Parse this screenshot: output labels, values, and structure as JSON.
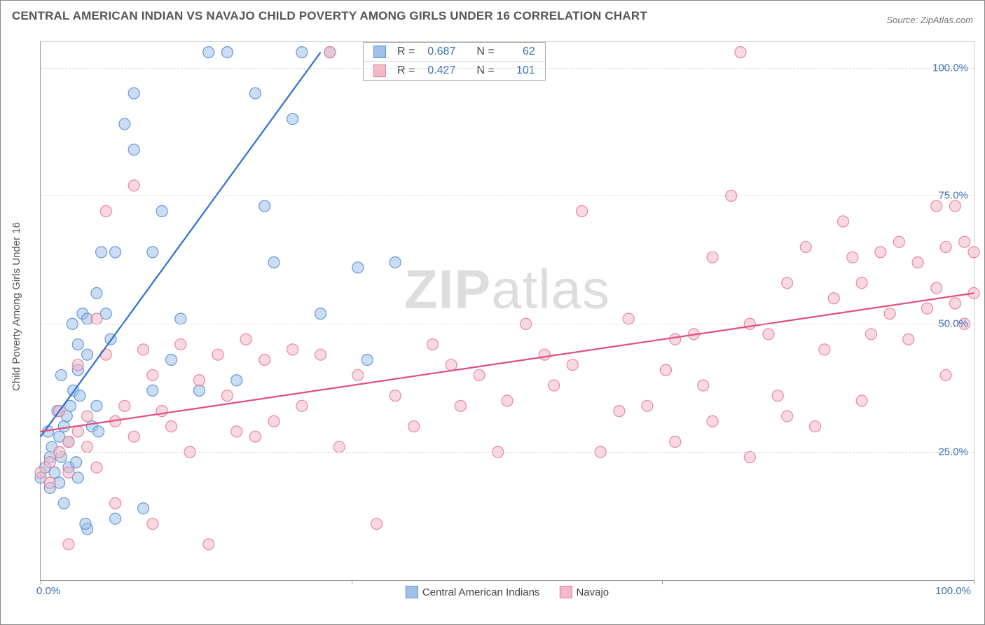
{
  "title": "CENTRAL AMERICAN INDIAN VS NAVAJO CHILD POVERTY AMONG GIRLS UNDER 16 CORRELATION CHART",
  "source": "Source: ZipAtlas.com",
  "ylabel": "Child Poverty Among Girls Under 16",
  "watermark_bold": "ZIP",
  "watermark_rest": "atlas",
  "chart": {
    "type": "scatter",
    "background_color": "#ffffff",
    "grid_color": "#d8d8d8",
    "axis_color": "#999999",
    "tick_label_color": "#3b6fb6",
    "xlim": [
      0,
      100
    ],
    "ylim": [
      0,
      105
    ],
    "yticks": [
      25,
      50,
      75,
      100
    ],
    "ytick_labels": [
      "25.0%",
      "50.0%",
      "75.0%",
      "100.0%"
    ],
    "xtick_positions": [
      0,
      33.3,
      66.6,
      100
    ],
    "xaxis_labels": {
      "left": "0.0%",
      "right": "100.0%"
    },
    "marker_radius": 8,
    "marker_opacity": 0.55,
    "marker_stroke_opacity": 0.9,
    "line_width": 2.2
  },
  "series": [
    {
      "name": "Central American Indians",
      "color_fill": "#9fc1e8",
      "color_stroke": "#5a8fd6",
      "line_color": "#2e6fd1",
      "stats": {
        "R": "0.687",
        "N": "62"
      },
      "trend": {
        "x1": 0,
        "y1": 28,
        "x2": 30,
        "y2": 103
      },
      "points": [
        [
          0,
          20
        ],
        [
          0.5,
          22
        ],
        [
          1,
          24
        ],
        [
          1,
          18
        ],
        [
          1.2,
          26
        ],
        [
          1.5,
          21
        ],
        [
          2,
          28
        ],
        [
          2,
          19
        ],
        [
          2.2,
          24
        ],
        [
          2.5,
          30
        ],
        [
          2.5,
          15
        ],
        [
          3,
          27
        ],
        [
          3,
          22
        ],
        [
          3.2,
          34
        ],
        [
          3.5,
          37
        ],
        [
          4,
          41
        ],
        [
          4,
          20
        ],
        [
          4,
          46
        ],
        [
          4.5,
          52
        ],
        [
          5,
          51
        ],
        [
          5,
          44
        ],
        [
          5,
          10
        ],
        [
          5.5,
          30
        ],
        [
          6,
          56
        ],
        [
          6,
          34
        ],
        [
          6.5,
          64
        ],
        [
          7,
          52
        ],
        [
          7.5,
          47
        ],
        [
          8,
          12
        ],
        [
          8,
          64
        ],
        [
          9,
          89
        ],
        [
          10,
          84
        ],
        [
          10,
          95
        ],
        [
          11,
          14
        ],
        [
          12,
          64
        ],
        [
          12,
          37
        ],
        [
          13,
          72
        ],
        [
          14,
          43
        ],
        [
          15,
          51
        ],
        [
          17,
          37
        ],
        [
          18,
          103
        ],
        [
          20,
          103
        ],
        [
          21,
          39
        ],
        [
          23,
          95
        ],
        [
          24,
          73
        ],
        [
          25,
          62
        ],
        [
          27,
          90
        ],
        [
          28,
          103
        ],
        [
          30,
          52
        ],
        [
          31,
          103
        ],
        [
          34,
          61
        ],
        [
          35,
          43
        ],
        [
          38,
          62
        ],
        [
          2.8,
          32
        ],
        [
          3.8,
          23
        ],
        [
          4.8,
          11
        ],
        [
          6.2,
          29
        ],
        [
          1.8,
          33
        ],
        [
          2.2,
          40
        ],
        [
          0.8,
          29
        ],
        [
          3.4,
          50
        ],
        [
          4.2,
          36
        ]
      ]
    },
    {
      "name": "Navajo",
      "color_fill": "#f3b9c7",
      "color_stroke": "#e77b9a",
      "line_color": "#e24e7b",
      "stats": {
        "R": "0.427",
        "N": "101"
      },
      "trend": {
        "x1": 0,
        "y1": 29,
        "x2": 100,
        "y2": 56
      },
      "points": [
        [
          0,
          21
        ],
        [
          1,
          23
        ],
        [
          1,
          19
        ],
        [
          2,
          25
        ],
        [
          2,
          33
        ],
        [
          3,
          27
        ],
        [
          3,
          21
        ],
        [
          3,
          7
        ],
        [
          4,
          29
        ],
        [
          4,
          42
        ],
        [
          5,
          32
        ],
        [
          5,
          26
        ],
        [
          6,
          51
        ],
        [
          6,
          22
        ],
        [
          7,
          44
        ],
        [
          7,
          72
        ],
        [
          8,
          31
        ],
        [
          8,
          15
        ],
        [
          9,
          34
        ],
        [
          10,
          28
        ],
        [
          10,
          77
        ],
        [
          11,
          45
        ],
        [
          12,
          40
        ],
        [
          12,
          11
        ],
        [
          13,
          33
        ],
        [
          14,
          30
        ],
        [
          15,
          46
        ],
        [
          16,
          25
        ],
        [
          17,
          39
        ],
        [
          18,
          7
        ],
        [
          19,
          44
        ],
        [
          20,
          36
        ],
        [
          21,
          29
        ],
        [
          22,
          47
        ],
        [
          23,
          28
        ],
        [
          24,
          43
        ],
        [
          25,
          31
        ],
        [
          27,
          45
        ],
        [
          28,
          34
        ],
        [
          30,
          44
        ],
        [
          31,
          103
        ],
        [
          32,
          26
        ],
        [
          34,
          40
        ],
        [
          36,
          11
        ],
        [
          38,
          36
        ],
        [
          40,
          30
        ],
        [
          42,
          46
        ],
        [
          44,
          42
        ],
        [
          45,
          34
        ],
        [
          47,
          40
        ],
        [
          49,
          25
        ],
        [
          50,
          35
        ],
        [
          52,
          50
        ],
        [
          54,
          44
        ],
        [
          55,
          38
        ],
        [
          57,
          42
        ],
        [
          58,
          72
        ],
        [
          60,
          25
        ],
        [
          62,
          33
        ],
        [
          63,
          51
        ],
        [
          65,
          34
        ],
        [
          67,
          41
        ],
        [
          68,
          27
        ],
        [
          70,
          48
        ],
        [
          71,
          38
        ],
        [
          72,
          31
        ],
        [
          74,
          75
        ],
        [
          75,
          103
        ],
        [
          76,
          24
        ],
        [
          78,
          48
        ],
        [
          79,
          36
        ],
        [
          80,
          32
        ],
        [
          82,
          65
        ],
        [
          83,
          30
        ],
        [
          85,
          55
        ],
        [
          86,
          70
        ],
        [
          87,
          63
        ],
        [
          88,
          58
        ],
        [
          89,
          48
        ],
        [
          90,
          64
        ],
        [
          91,
          52
        ],
        [
          92,
          66
        ],
        [
          93,
          47
        ],
        [
          94,
          62
        ],
        [
          95,
          53
        ],
        [
          96,
          57
        ],
        [
          96,
          73
        ],
        [
          97,
          40
        ],
        [
          97,
          65
        ],
        [
          98,
          54
        ],
        [
          98,
          73
        ],
        [
          99,
          66
        ],
        [
          99,
          50
        ],
        [
          100,
          56
        ],
        [
          100,
          64
        ],
        [
          88,
          35
        ],
        [
          84,
          45
        ],
        [
          80,
          58
        ],
        [
          76,
          50
        ],
        [
          72,
          63
        ],
        [
          68,
          47
        ]
      ]
    }
  ],
  "legend_bottom": [
    {
      "label": "Central American Indians",
      "fill": "#9fc1e8",
      "stroke": "#5a8fd6"
    },
    {
      "label": "Navajo",
      "fill": "#f3b9c7",
      "stroke": "#e77b9a"
    }
  ],
  "stats_box": {
    "rows": [
      {
        "fill": "#9fc1e8",
        "stroke": "#5a8fd6",
        "r_label": "R =",
        "r": "0.687",
        "n_label": "N =",
        "n": "62"
      },
      {
        "fill": "#f3b9c7",
        "stroke": "#e77b9a",
        "r_label": "R =",
        "r": "0.427",
        "n_label": "N =",
        "n": "101"
      }
    ]
  }
}
